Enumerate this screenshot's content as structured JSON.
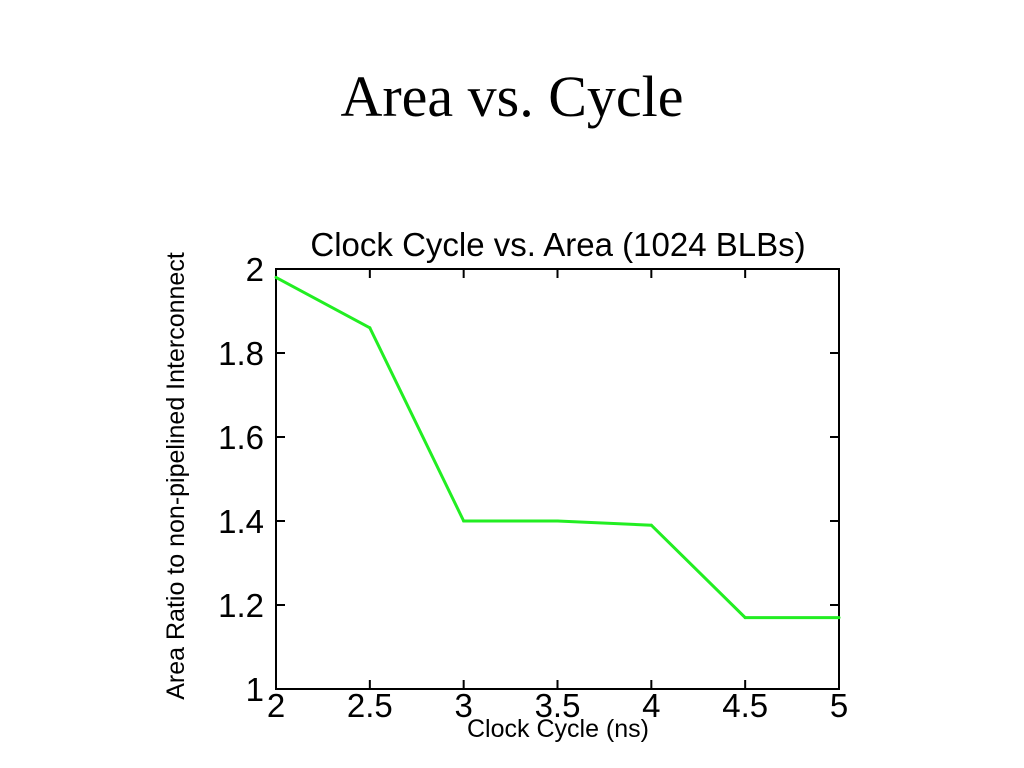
{
  "slide": {
    "title": "Area vs. Cycle"
  },
  "chart_data": {
    "type": "line",
    "title": "Clock Cycle vs. Area (1024 BLBs)",
    "xlabel": "Clock Cycle (ns)",
    "ylabel": "Area Ratio to non-pipelined Interconnect",
    "xlim": [
      2,
      5
    ],
    "ylim": [
      1,
      2
    ],
    "xticks": [
      2,
      2.5,
      3,
      3.5,
      4,
      4.5,
      5
    ],
    "xtick_labels": [
      "2",
      "2.5",
      "3",
      "3.5",
      "4",
      "4.5",
      "5"
    ],
    "yticks": [
      1,
      1.2,
      1.4,
      1.6,
      1.8,
      2
    ],
    "ytick_labels": [
      "1",
      "1.2",
      "1.4",
      "1.6",
      "1.8",
      "2"
    ],
    "grid": false,
    "series": [
      {
        "color": "#22ee22",
        "x": [
          2,
          2.5,
          3,
          3.5,
          4,
          4.5,
          5
        ],
        "y": [
          1.98,
          1.86,
          1.4,
          1.4,
          1.39,
          1.17,
          1.17
        ]
      }
    ]
  }
}
